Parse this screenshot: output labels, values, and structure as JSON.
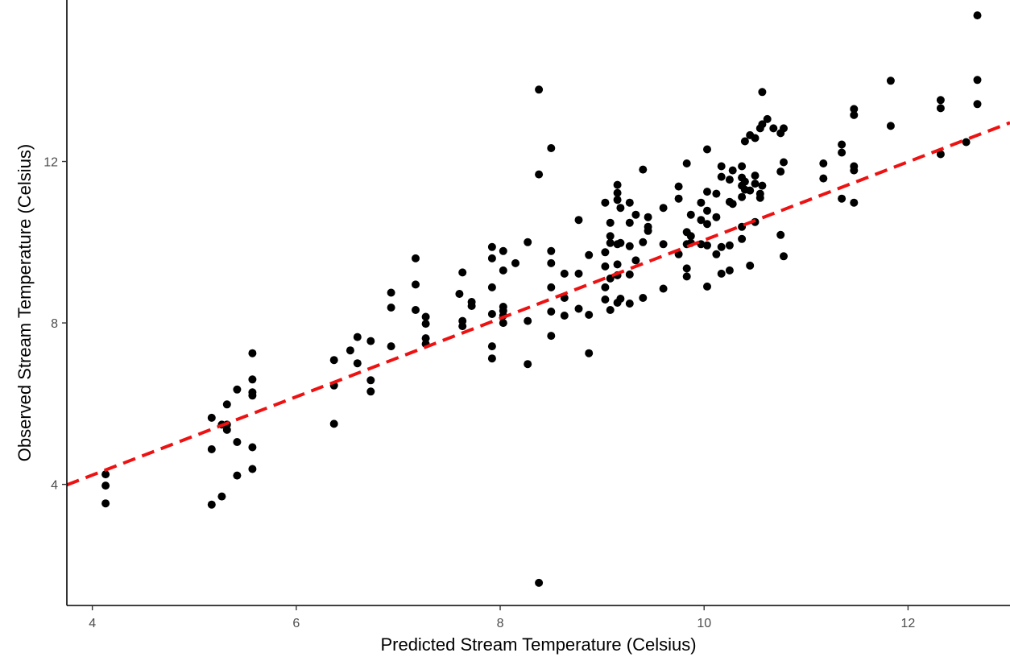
{
  "chart_data": {
    "type": "scatter",
    "title": "",
    "xlabel": "Predicted Stream Temperature (Celsius)",
    "ylabel": "Observed Stream Temperature (Celsius)",
    "xlim": [
      3.75,
      13.0
    ],
    "ylim": [
      1.0,
      16.0
    ],
    "x_ticks": [
      4,
      6,
      8,
      10,
      12
    ],
    "y_ticks": [
      4,
      8,
      12
    ],
    "x_tick_labels": [
      "4",
      "6",
      "8",
      "10",
      "12"
    ],
    "y_tick_labels": [
      "4",
      "8",
      "12"
    ],
    "grid": false,
    "legend": "none",
    "point_color": "#000000",
    "reference_line": {
      "style": "dashed",
      "color": "#ee1111",
      "intercept": 0.35,
      "slope": 0.97
    },
    "points": [
      [
        4.13,
        4.25
      ],
      [
        4.13,
        3.97
      ],
      [
        4.13,
        3.53
      ],
      [
        5.17,
        5.65
      ],
      [
        5.17,
        4.87
      ],
      [
        5.17,
        3.5
      ],
      [
        5.27,
        5.48
      ],
      [
        5.27,
        3.7
      ],
      [
        5.32,
        5.98
      ],
      [
        5.32,
        5.48
      ],
      [
        5.32,
        5.35
      ],
      [
        5.42,
        6.35
      ],
      [
        5.42,
        5.05
      ],
      [
        5.42,
        4.22
      ],
      [
        5.57,
        7.25
      ],
      [
        5.57,
        6.6
      ],
      [
        5.57,
        6.28
      ],
      [
        5.57,
        6.2
      ],
      [
        5.57,
        4.92
      ],
      [
        5.57,
        4.38
      ],
      [
        6.37,
        7.08
      ],
      [
        6.37,
        6.45
      ],
      [
        6.37,
        5.5
      ],
      [
        6.53,
        7.32
      ],
      [
        6.6,
        7.65
      ],
      [
        6.6,
        7.0
      ],
      [
        6.73,
        7.55
      ],
      [
        6.73,
        6.58
      ],
      [
        6.73,
        6.3
      ],
      [
        6.93,
        8.75
      ],
      [
        6.93,
        8.38
      ],
      [
        6.93,
        7.42
      ],
      [
        7.17,
        9.6
      ],
      [
        7.17,
        8.95
      ],
      [
        7.17,
        8.32
      ],
      [
        7.27,
        8.15
      ],
      [
        7.27,
        7.98
      ],
      [
        7.27,
        7.62
      ],
      [
        7.27,
        7.48
      ],
      [
        7.6,
        8.72
      ],
      [
        7.63,
        9.25
      ],
      [
        7.63,
        8.05
      ],
      [
        7.63,
        7.92
      ],
      [
        7.72,
        8.52
      ],
      [
        7.72,
        8.42
      ],
      [
        7.92,
        9.88
      ],
      [
        7.92,
        9.6
      ],
      [
        7.92,
        8.88
      ],
      [
        7.92,
        8.22
      ],
      [
        7.92,
        7.42
      ],
      [
        7.92,
        7.12
      ],
      [
        8.03,
        9.78
      ],
      [
        8.03,
        9.3
      ],
      [
        8.03,
        8.4
      ],
      [
        8.03,
        8.3
      ],
      [
        8.03,
        8.18
      ],
      [
        8.03,
        8.0
      ],
      [
        8.15,
        9.48
      ],
      [
        8.27,
        10.0
      ],
      [
        8.27,
        8.05
      ],
      [
        8.27,
        6.98
      ],
      [
        8.38,
        13.78
      ],
      [
        8.38,
        11.68
      ],
      [
        8.38,
        1.56
      ],
      [
        8.5,
        12.33
      ],
      [
        8.5,
        9.78
      ],
      [
        8.5,
        9.48
      ],
      [
        8.5,
        8.88
      ],
      [
        8.5,
        8.28
      ],
      [
        8.5,
        7.68
      ],
      [
        8.63,
        9.22
      ],
      [
        8.63,
        8.62
      ],
      [
        8.63,
        8.18
      ],
      [
        8.77,
        10.55
      ],
      [
        8.77,
        9.22
      ],
      [
        8.77,
        8.35
      ],
      [
        8.87,
        9.68
      ],
      [
        8.87,
        8.2
      ],
      [
        8.87,
        7.25
      ],
      [
        9.03,
        10.98
      ],
      [
        9.03,
        9.75
      ],
      [
        9.03,
        9.4
      ],
      [
        9.03,
        8.88
      ],
      [
        9.03,
        8.58
      ],
      [
        9.08,
        10.48
      ],
      [
        9.08,
        10.15
      ],
      [
        9.08,
        9.98
      ],
      [
        9.08,
        9.1
      ],
      [
        9.08,
        8.32
      ],
      [
        9.15,
        11.42
      ],
      [
        9.15,
        11.22
      ],
      [
        9.15,
        11.05
      ],
      [
        9.15,
        9.95
      ],
      [
        9.15,
        9.45
      ],
      [
        9.15,
        9.18
      ],
      [
        9.15,
        8.5
      ],
      [
        9.18,
        10.85
      ],
      [
        9.18,
        9.98
      ],
      [
        9.18,
        8.6
      ],
      [
        9.27,
        10.98
      ],
      [
        9.27,
        10.48
      ],
      [
        9.27,
        9.9
      ],
      [
        9.27,
        9.2
      ],
      [
        9.27,
        8.48
      ],
      [
        9.33,
        10.68
      ],
      [
        9.33,
        9.55
      ],
      [
        9.4,
        11.8
      ],
      [
        9.4,
        10.0
      ],
      [
        9.4,
        8.62
      ],
      [
        9.45,
        10.62
      ],
      [
        9.45,
        10.38
      ],
      [
        9.45,
        10.28
      ],
      [
        9.6,
        10.85
      ],
      [
        9.6,
        9.95
      ],
      [
        9.6,
        8.85
      ],
      [
        9.75,
        11.38
      ],
      [
        9.75,
        11.08
      ],
      [
        9.75,
        9.7
      ],
      [
        9.83,
        11.95
      ],
      [
        9.83,
        10.25
      ],
      [
        9.83,
        9.95
      ],
      [
        9.83,
        9.35
      ],
      [
        9.83,
        9.15
      ],
      [
        9.87,
        10.68
      ],
      [
        9.87,
        10.15
      ],
      [
        9.87,
        9.98
      ],
      [
        9.97,
        10.98
      ],
      [
        9.97,
        10.55
      ],
      [
        9.97,
        9.95
      ],
      [
        10.03,
        12.3
      ],
      [
        10.03,
        11.25
      ],
      [
        10.03,
        10.78
      ],
      [
        10.03,
        10.45
      ],
      [
        10.03,
        9.92
      ],
      [
        10.03,
        8.9
      ],
      [
        10.12,
        11.2
      ],
      [
        10.12,
        10.62
      ],
      [
        10.12,
        9.7
      ],
      [
        10.17,
        11.88
      ],
      [
        10.17,
        11.62
      ],
      [
        10.17,
        9.88
      ],
      [
        10.17,
        9.22
      ],
      [
        10.25,
        11.55
      ],
      [
        10.25,
        11.0
      ],
      [
        10.25,
        9.92
      ],
      [
        10.25,
        9.3
      ],
      [
        10.28,
        11.78
      ],
      [
        10.28,
        10.95
      ],
      [
        10.37,
        11.88
      ],
      [
        10.37,
        11.6
      ],
      [
        10.37,
        11.4
      ],
      [
        10.37,
        11.12
      ],
      [
        10.37,
        10.38
      ],
      [
        10.37,
        10.08
      ],
      [
        10.4,
        12.5
      ],
      [
        10.4,
        11.5
      ],
      [
        10.4,
        11.3
      ],
      [
        10.45,
        12.65
      ],
      [
        10.45,
        11.28
      ],
      [
        10.45,
        9.42
      ],
      [
        10.5,
        12.58
      ],
      [
        10.5,
        11.65
      ],
      [
        10.5,
        11.45
      ],
      [
        10.5,
        10.5
      ],
      [
        10.55,
        12.82
      ],
      [
        10.55,
        11.2
      ],
      [
        10.55,
        11.1
      ],
      [
        10.57,
        13.72
      ],
      [
        10.57,
        12.92
      ],
      [
        10.57,
        11.4
      ],
      [
        10.62,
        13.05
      ],
      [
        10.68,
        12.82
      ],
      [
        10.75,
        12.7
      ],
      [
        10.75,
        11.75
      ],
      [
        10.75,
        10.18
      ],
      [
        10.78,
        12.82
      ],
      [
        10.78,
        11.98
      ],
      [
        10.78,
        9.65
      ],
      [
        11.17,
        11.95
      ],
      [
        11.17,
        11.58
      ],
      [
        11.35,
        12.42
      ],
      [
        11.35,
        12.22
      ],
      [
        11.35,
        11.08
      ],
      [
        11.47,
        13.3
      ],
      [
        11.47,
        13.15
      ],
      [
        11.47,
        11.88
      ],
      [
        11.47,
        11.78
      ],
      [
        11.47,
        10.98
      ],
      [
        11.83,
        14.0
      ],
      [
        11.83,
        12.88
      ],
      [
        12.32,
        13.52
      ],
      [
        12.32,
        13.32
      ],
      [
        12.32,
        12.18
      ],
      [
        12.57,
        12.48
      ],
      [
        12.68,
        15.62
      ],
      [
        12.68,
        14.02
      ],
      [
        12.68,
        13.42
      ]
    ]
  }
}
